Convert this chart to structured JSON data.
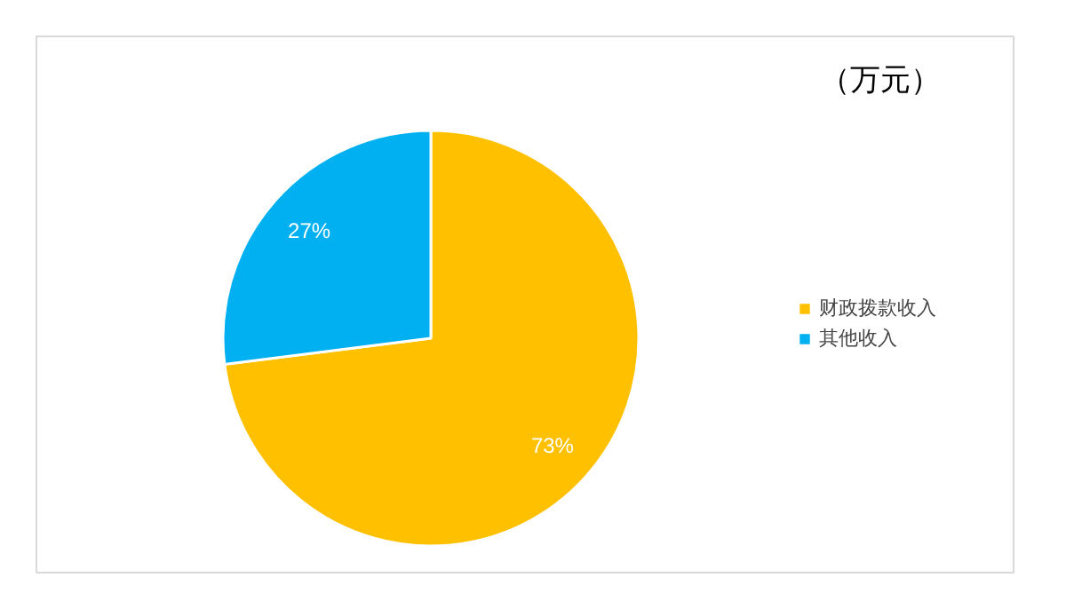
{
  "chart_data": {
    "type": "pie",
    "title": "（万元）",
    "categories": [
      "财政拨款收入",
      "其他收入"
    ],
    "values": [
      73,
      27
    ],
    "colors": [
      "#ffc000",
      "#00b0f0"
    ],
    "value_labels": [
      "73%",
      "27%"
    ],
    "legend": "right"
  }
}
